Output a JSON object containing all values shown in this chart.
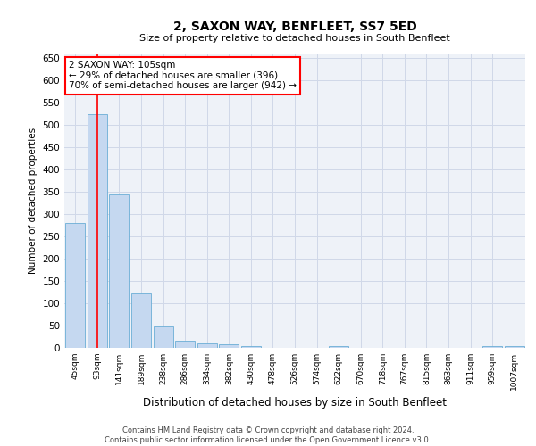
{
  "title": "2, SAXON WAY, BENFLEET, SS7 5ED",
  "subtitle": "Size of property relative to detached houses in South Benfleet",
  "xlabel": "Distribution of detached houses by size in South Benfleet",
  "ylabel": "Number of detached properties",
  "categories": [
    "45sqm",
    "93sqm",
    "141sqm",
    "189sqm",
    "238sqm",
    "286sqm",
    "334sqm",
    "382sqm",
    "430sqm",
    "478sqm",
    "526sqm",
    "574sqm",
    "622sqm",
    "670sqm",
    "718sqm",
    "767sqm",
    "815sqm",
    "863sqm",
    "911sqm",
    "959sqm",
    "1007sqm"
  ],
  "values": [
    280,
    525,
    345,
    122,
    48,
    16,
    10,
    8,
    5,
    0,
    0,
    0,
    5,
    0,
    0,
    0,
    0,
    0,
    0,
    5,
    5
  ],
  "bar_color": "#c5d8f0",
  "bar_edge_color": "#6aaed6",
  "grid_color": "#d0d8e8",
  "background_color": "#eef2f8",
  "red_line_x": 1.0,
  "annotation_text": "2 SAXON WAY: 105sqm\n← 29% of detached houses are smaller (396)\n70% of semi-detached houses are larger (942) →",
  "annotation_box_color": "white",
  "annotation_box_edge": "red",
  "footer": "Contains HM Land Registry data © Crown copyright and database right 2024.\nContains public sector information licensed under the Open Government Licence v3.0.",
  "ylim": [
    0,
    660
  ],
  "yticks": [
    0,
    50,
    100,
    150,
    200,
    250,
    300,
    350,
    400,
    450,
    500,
    550,
    600,
    650
  ]
}
